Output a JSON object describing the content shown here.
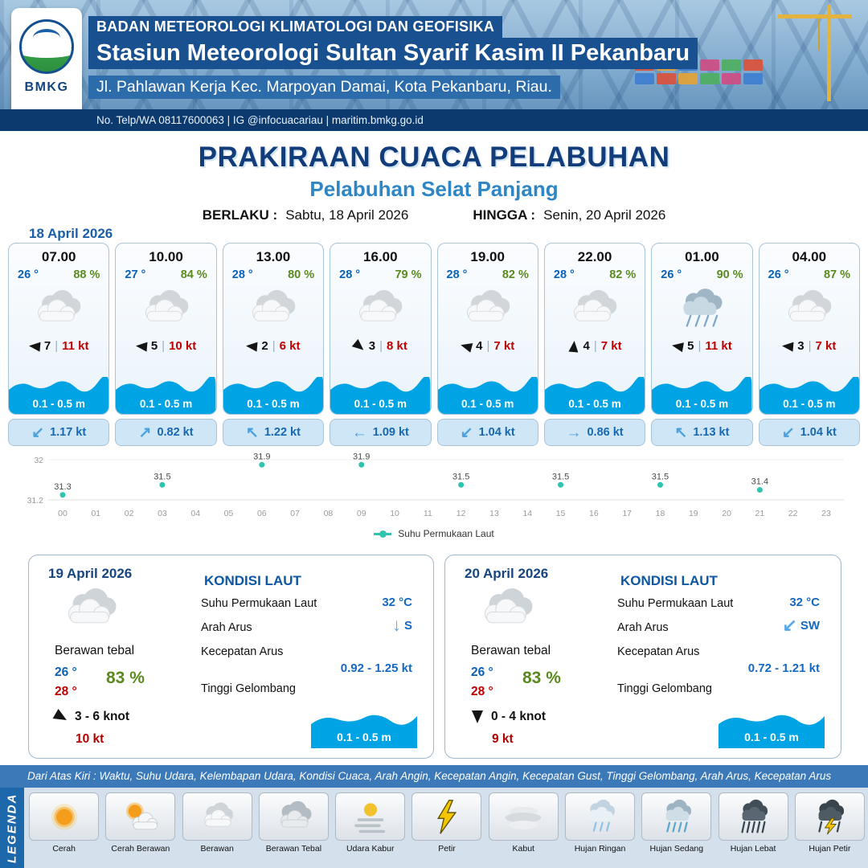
{
  "header": {
    "agency": "BADAN METEOROLOGI KLIMATOLOGI DAN GEOFISIKA",
    "station": "Stasiun Meteorologi Sultan Syarif Kasim II Pekanbaru",
    "address": "Jl. Pahlawan Kerja Kec. Marpoyan Damai, Kota Pekanbaru, Riau.",
    "contact": "No. Telp/WA 08117600063 | IG @infocuacariau | maritim.bmkg.go.id",
    "logo_text": "BMKG"
  },
  "title": "PRAKIRAAN CUACA PELABUHAN",
  "subtitle": "Pelabuhan Selat Panjang",
  "validity": {
    "from_label": "BERLAKU :",
    "from": "Sabtu, 18 April 2026",
    "to_label": "HINGGA :",
    "to": "Senin, 20 April 2026"
  },
  "ui": {
    "separator": "|"
  },
  "day1": {
    "date": "18 April 2026",
    "cards": [
      {
        "time": "07.00",
        "temp": "26 °",
        "rh": "88 %",
        "icon": "berawan",
        "wind": "7",
        "gust": "11 kt",
        "wind_rot": 185,
        "wave": "0.1 - 0.5 m",
        "cur_arrow": "↙",
        "cur": "1.17 kt"
      },
      {
        "time": "10.00",
        "temp": "27 °",
        "rh": "84 %",
        "icon": "berawan",
        "wind": "5",
        "gust": "10 kt",
        "wind_rot": 185,
        "wave": "0.1 - 0.5 m",
        "cur_arrow": "↗",
        "cur": "0.82 kt"
      },
      {
        "time": "13.00",
        "temp": "28 °",
        "rh": "80 %",
        "icon": "berawan",
        "wind": "2",
        "gust": "6 kt",
        "wind_rot": 185,
        "wave": "0.1 - 0.5 m",
        "cur_arrow": "↖",
        "cur": "1.22 kt"
      },
      {
        "time": "16.00",
        "temp": "28 °",
        "rh": "79 %",
        "icon": "berawan",
        "wind": "3",
        "gust": "8 kt",
        "wind_rot": 40,
        "wave": "0.1 - 0.5 m",
        "cur_arrow": "←",
        "cur": "1.09 kt"
      },
      {
        "time": "19.00",
        "temp": "28 °",
        "rh": "82 %",
        "icon": "berawan",
        "wind": "4",
        "gust": "7 kt",
        "wind_rot": 195,
        "wave": "0.1 - 0.5 m",
        "cur_arrow": "↙",
        "cur": "1.04 kt"
      },
      {
        "time": "22.00",
        "temp": "28 °",
        "rh": "82 %",
        "icon": "berawan",
        "wind": "4",
        "gust": "7 kt",
        "wind_rot": 275,
        "wave": "0.1 - 0.5 m",
        "cur_arrow": "→",
        "cur": "0.86 kt"
      },
      {
        "time": "01.00",
        "temp": "26 °",
        "rh": "90 %",
        "icon": "hujan",
        "wind": "5",
        "gust": "11 kt",
        "wind_rot": 190,
        "wave": "0.1 - 0.5 m",
        "cur_arrow": "↖",
        "cur": "1.13 kt"
      },
      {
        "time": "04.00",
        "temp": "26 °",
        "rh": "87 %",
        "icon": "berawan",
        "wind": "3",
        "gust": "7 kt",
        "wind_rot": 185,
        "wave": "0.1 - 0.5 m",
        "cur_arrow": "↙",
        "cur": "1.04 kt"
      }
    ]
  },
  "chart_data": {
    "type": "scatter",
    "series_label": "Suhu Permukaan Laut",
    "x": [
      0,
      3,
      6,
      9,
      12,
      15,
      18,
      21
    ],
    "values": [
      31.3,
      31.5,
      31.9,
      31.9,
      31.5,
      31.5,
      31.5,
      31.4
    ],
    "xticks": [
      "00",
      "01",
      "02",
      "03",
      "04",
      "05",
      "06",
      "07",
      "08",
      "09",
      "10",
      "11",
      "12",
      "13",
      "14",
      "15",
      "16",
      "17",
      "18",
      "19",
      "20",
      "21",
      "22",
      "23"
    ],
    "ylim": [
      31.2,
      32
    ],
    "ytick_labels": [
      "31.2",
      "32"
    ],
    "point_color": "#2fc4ad",
    "grid": "minimal",
    "legend_position": "bottom"
  },
  "day_cards": [
    {
      "date": "19 April 2026",
      "condition": "Berawan tebal",
      "temp_day": "26 °",
      "temp_night": "28 °",
      "rh": "83 %",
      "wind_rot": 30,
      "wind": "3  - 6 knot",
      "gust": "10 kt",
      "sea": {
        "title": "KONDISI LAUT",
        "sst_label": "Suhu Permukaan Laut",
        "sst": "32 °C",
        "dir_label": "Arah Arus",
        "dir_arrow": "↓",
        "dir": "S",
        "speed_label": "Kecepatan Arus",
        "speed": "0.92  - 1.25 kt",
        "wave_label": "Tinggi Gelombang",
        "wave": "0.1 - 0.5 m"
      }
    },
    {
      "date": "20 April 2026",
      "condition": "Berawan tebal",
      "temp_day": "26 °",
      "temp_night": "28 °",
      "rh": "83 %",
      "wind_rot": 90,
      "wind": "0  - 4 knot",
      "gust": "9 kt",
      "sea": {
        "title": "KONDISI LAUT",
        "sst_label": "Suhu Permukaan Laut",
        "sst": "32 °C",
        "dir_label": "Arah Arus",
        "dir_arrow": "↙",
        "dir": "SW",
        "speed_label": "Kecepatan Arus",
        "speed": "0.72  - 1.21 kt",
        "wave_label": "Tinggi Gelombang",
        "wave": "0.1 - 0.5 m"
      }
    }
  ],
  "legend": {
    "note": "Dari Atas Kiri : Waktu, Suhu Udara, Kelembapan Udara, Kondisi Cuaca, Arah Angin, Kecepatan Angin, Kecepatan Gust, Tinggi Gelombang, Arah Arus, Kecepatan Arus",
    "title": "LEGENDA",
    "items": [
      {
        "label": "Cerah"
      },
      {
        "label": "Cerah Berawan"
      },
      {
        "label": "Berawan"
      },
      {
        "label": "Berawan Tebal"
      },
      {
        "label": "Udara Kabur"
      },
      {
        "label": "Petir"
      },
      {
        "label": "Kabut"
      },
      {
        "label": "Hujan Ringan"
      },
      {
        "label": "Hujan Sedang"
      },
      {
        "label": "Hujan Lebat"
      },
      {
        "label": "Hujan Petir"
      }
    ]
  }
}
